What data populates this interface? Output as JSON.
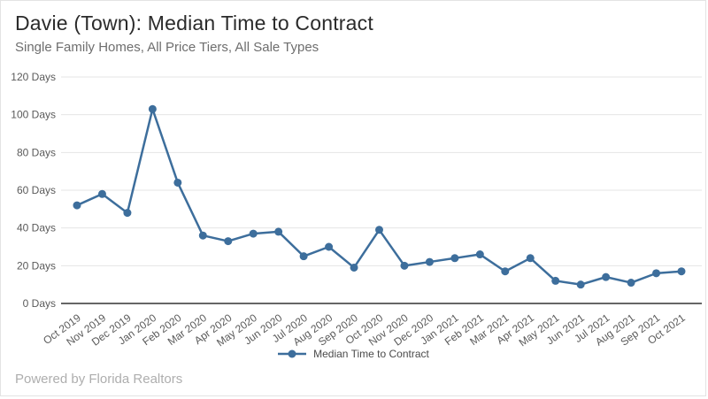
{
  "header": {
    "title": "Davie (Town): Median Time to Contract",
    "subtitle": "Single Family Homes, All Price Tiers, All Sale Types"
  },
  "legend": {
    "label": "Median Time to Contract"
  },
  "footer": {
    "powered_by": "Powered by Florida Realtors"
  },
  "colors": {
    "line": "#3d6e9c",
    "marker": "#3d6e9c",
    "grid": "#e4e4e4",
    "axis": "#333333",
    "tick_text": "#5a5a5a",
    "background": "#ffffff"
  },
  "chart_data": {
    "type": "line",
    "title": "Davie (Town): Median Time to Contract",
    "subtitle": "Single Family Homes, All Price Tiers, All Sale Types",
    "xlabel": "",
    "ylabel": "Days",
    "ylim": [
      0,
      120
    ],
    "y_tick_interval": 20,
    "y_tick_labels": [
      "0 Days",
      "20 Days",
      "40 Days",
      "60 Days",
      "80 Days",
      "100 Days",
      "120 Days"
    ],
    "grid": true,
    "legend_position": "bottom",
    "categories": [
      "Oct 2019",
      "Nov 2019",
      "Dec 2019",
      "Jan 2020",
      "Feb 2020",
      "Mar 2020",
      "Apr 2020",
      "May 2020",
      "Jun 2020",
      "Jul 2020",
      "Aug 2020",
      "Sep 2020",
      "Oct 2020",
      "Nov 2020",
      "Dec 2020",
      "Jan 2021",
      "Feb 2021",
      "Mar 2021",
      "Apr 2021",
      "May 2021",
      "Jun 2021",
      "Jul 2021",
      "Aug 2021",
      "Sep 2021",
      "Oct 2021"
    ],
    "series": [
      {
        "name": "Median Time to Contract",
        "values": [
          52,
          58,
          48,
          103,
          64,
          36,
          33,
          37,
          38,
          25,
          30,
          19,
          39,
          20,
          22,
          24,
          26,
          17,
          24,
          12,
          10,
          14,
          11,
          16,
          17
        ]
      }
    ]
  }
}
